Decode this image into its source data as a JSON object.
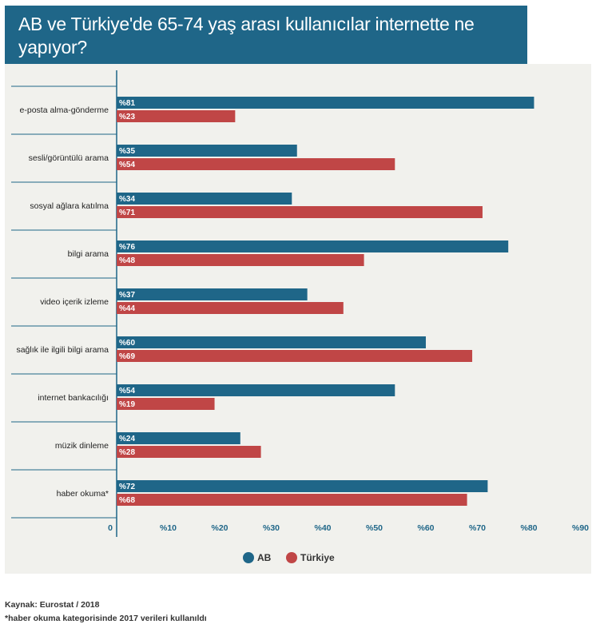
{
  "title": "AB ve Türkiye'de 65-74 yaş arası kullanıcılar internette ne yapıyor?",
  "chart_data": {
    "type": "bar",
    "orientation": "horizontal",
    "categories": [
      "e-posta alma-gönderme",
      "sesli/görüntülü arama",
      "sosyal ağlara katılma",
      "bilgi arama",
      "video içerik izleme",
      "sağlık ile ilgili bilgi arama",
      "internet bankacılığı",
      "müzik dinleme",
      "haber okuma*"
    ],
    "series": [
      {
        "name": "AB",
        "color": "#1f6688",
        "values": [
          81,
          35,
          34,
          76,
          37,
          60,
          54,
          24,
          72
        ]
      },
      {
        "name": "Türkiye",
        "color": "#c04646",
        "values": [
          23,
          54,
          71,
          48,
          44,
          69,
          19,
          28,
          68
        ]
      }
    ],
    "value_prefix": "%",
    "xlim": [
      0,
      90
    ],
    "xticks": [
      {
        "value": 0,
        "label": "0"
      },
      {
        "value": 10,
        "label": "%10"
      },
      {
        "value": 20,
        "label": "%20"
      },
      {
        "value": 30,
        "label": "%30"
      },
      {
        "value": 40,
        "label": "%40"
      },
      {
        "value": 50,
        "label": "%50"
      },
      {
        "value": 60,
        "label": "%60"
      },
      {
        "value": 70,
        "label": "%70"
      },
      {
        "value": 80,
        "label": "%80"
      },
      {
        "value": 90,
        "label": "%90"
      }
    ],
    "legend_position": "bottom-center"
  },
  "footer": {
    "source": "Kaynak: Eurostat / 2018",
    "note": "*haber okuma kategorisinde 2017 verileri kullanıldı"
  }
}
